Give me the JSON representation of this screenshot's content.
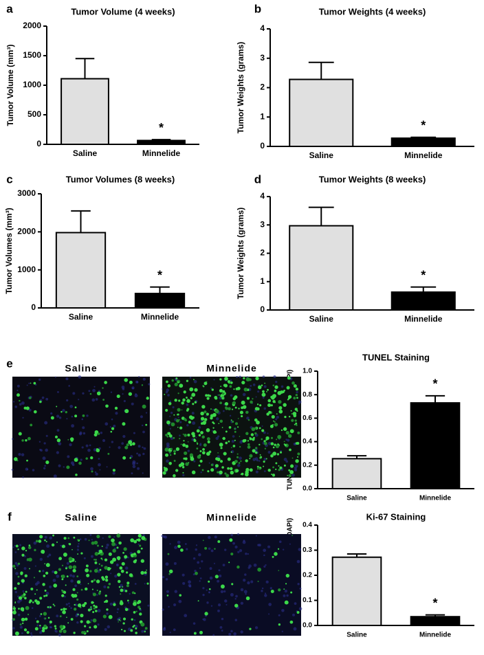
{
  "chart_data": [
    {
      "type": "bar",
      "panel": "a",
      "title": "Tumor Volume (4 weeks)",
      "y_label": "Tumor Volume (mm³)",
      "categories": [
        "Saline",
        "Minnelide"
      ],
      "values": [
        1110,
        65
      ],
      "errors": [
        340,
        15
      ],
      "colors": [
        "#e0e0e0",
        "#000000"
      ],
      "annotation": "*",
      "ylim": [
        0,
        2000
      ],
      "yticks": [
        0,
        500,
        1000,
        1500,
        2000
      ]
    },
    {
      "type": "bar",
      "panel": "b",
      "title": "Tumor Weights (4 weeks)",
      "y_label": "Tumor Weights (grams)",
      "categories": [
        "Saline",
        "Minnelide"
      ],
      "values": [
        2.28,
        0.28
      ],
      "errors": [
        0.58,
        0.03
      ],
      "colors": [
        "#e0e0e0",
        "#000000"
      ],
      "annotation": "*",
      "ylim": [
        0,
        4
      ],
      "yticks": [
        0,
        1,
        2,
        3,
        4
      ]
    },
    {
      "type": "bar",
      "panel": "c",
      "title": "Tumor Volumes (8 weeks)",
      "y_label": "Tumor Volumes (mm³)",
      "categories": [
        "Saline",
        "Minnelide"
      ],
      "values": [
        1980,
        380
      ],
      "errors": [
        570,
        170
      ],
      "colors": [
        "#e0e0e0",
        "#000000"
      ],
      "annotation": "*",
      "ylim": [
        0,
        3000
      ],
      "yticks": [
        0,
        1000,
        2000,
        3000
      ]
    },
    {
      "type": "bar",
      "panel": "d",
      "title": "Tumor Weights (8 weeks)",
      "y_label": "Tumor Weights (grams)",
      "categories": [
        "Saline",
        "Minnelide"
      ],
      "values": [
        2.97,
        0.63
      ],
      "errors": [
        0.65,
        0.18
      ],
      "colors": [
        "#e0e0e0",
        "#000000"
      ],
      "annotation": "*",
      "ylim": [
        0,
        4
      ],
      "yticks": [
        0,
        1,
        2,
        3,
        4
      ]
    },
    {
      "type": "bar",
      "panel": "e",
      "title": "TUNEL Staining",
      "y_label": "TUNEL staining (normalized to DAPI)",
      "categories": [
        "Saline",
        "Minnelide"
      ],
      "values": [
        0.255,
        0.73
      ],
      "errors": [
        0.025,
        0.06
      ],
      "colors": [
        "#e0e0e0",
        "#000000"
      ],
      "annotation": "*",
      "ylim": [
        0,
        1.0
      ],
      "yticks": [
        {
          "value": 0,
          "label": "0.0"
        },
        0.2,
        0.4,
        0.6,
        0.8,
        {
          "value": 1.0,
          "label": "1.0"
        }
      ]
    },
    {
      "type": "bar",
      "panel": "f",
      "title": "Ki-67 Staining",
      "y_label": "Ki-67 staining (normalized to DAPI)",
      "categories": [
        "Saline",
        "Minnelide"
      ],
      "values": [
        0.272,
        0.035
      ],
      "errors": [
        0.013,
        0.007
      ],
      "colors": [
        "#e0e0e0",
        "#000000"
      ],
      "annotation": "*",
      "ylim": [
        0,
        0.4
      ],
      "yticks": [
        {
          "value": 0,
          "label": "0.0"
        },
        0.1,
        0.2,
        0.3,
        0.4
      ]
    }
  ],
  "image_panels": [
    {
      "labels": [
        "Saline",
        "Minnelide"
      ]
    },
    {
      "labels": [
        "Saline",
        "Minnelide"
      ]
    }
  ]
}
